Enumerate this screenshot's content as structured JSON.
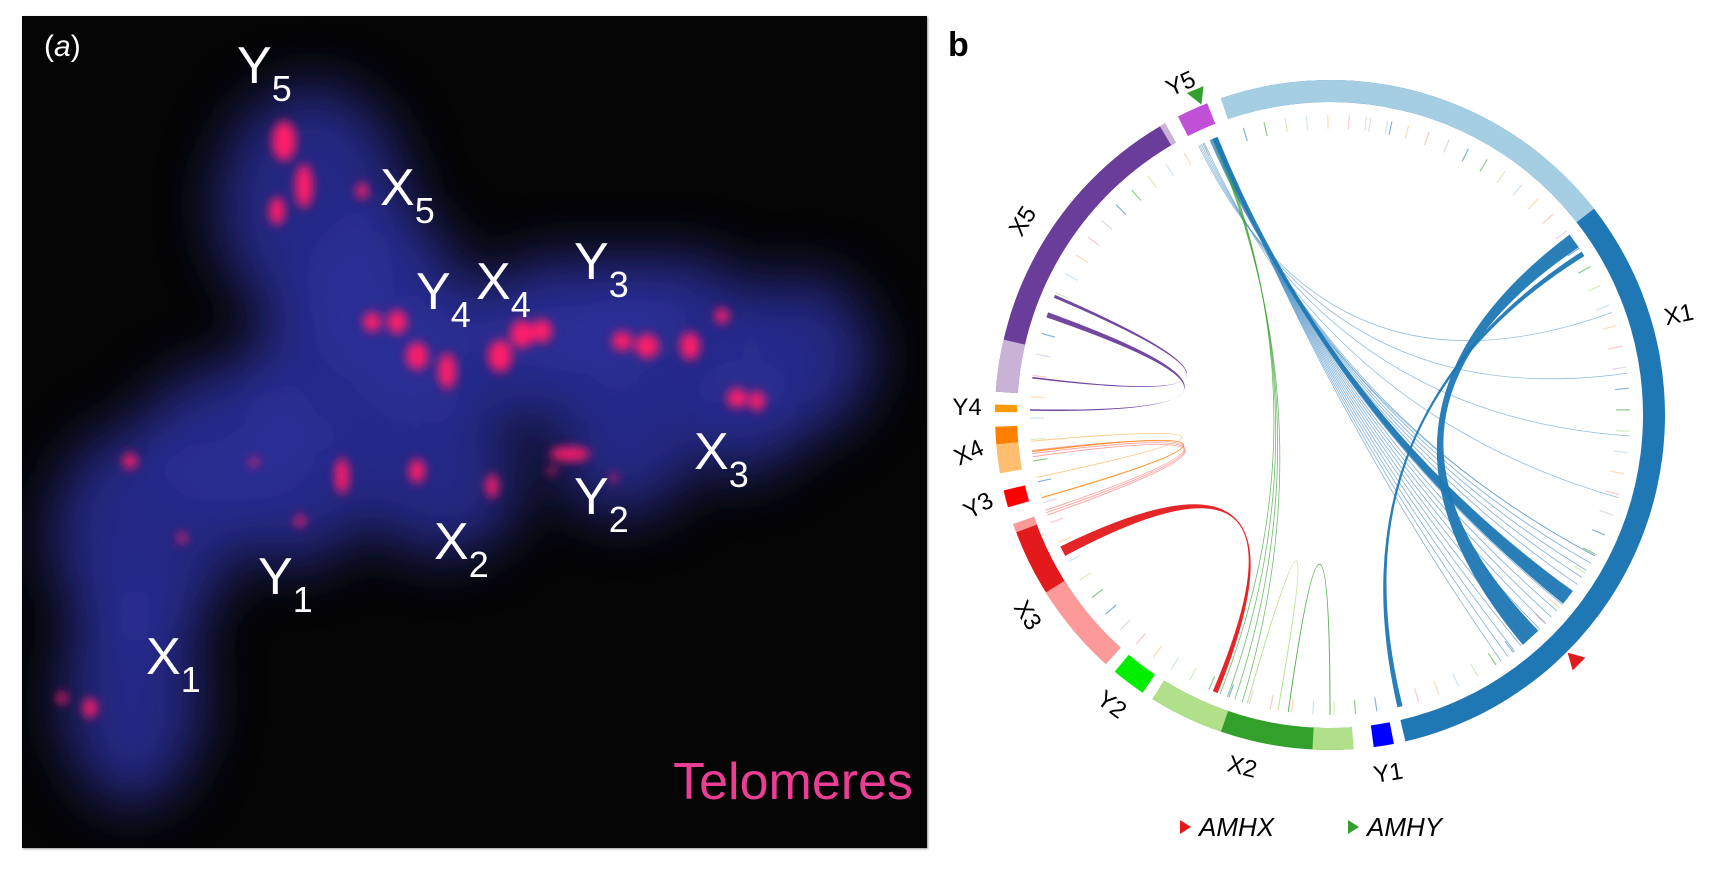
{
  "panel_a": {
    "tag_open": "(",
    "tag_letter": "a",
    "tag_close": ")",
    "caption": "Telomeres",
    "caption_color": "#ea3d94",
    "labels": [
      {
        "id": "Y5",
        "base": "Y",
        "sub": "5"
      },
      {
        "id": "X5",
        "base": "X",
        "sub": "5"
      },
      {
        "id": "Y4",
        "base": "Y",
        "sub": "4"
      },
      {
        "id": "X4",
        "base": "X",
        "sub": "4"
      },
      {
        "id": "Y3",
        "base": "Y",
        "sub": "3"
      },
      {
        "id": "X3",
        "base": "X",
        "sub": "3"
      },
      {
        "id": "Y2",
        "base": "Y",
        "sub": "2"
      },
      {
        "id": "X2",
        "base": "X",
        "sub": "2"
      },
      {
        "id": "Y1",
        "base": "Y",
        "sub": "1"
      },
      {
        "id": "X1",
        "base": "X",
        "sub": "1"
      }
    ]
  },
  "panel_b": {
    "tag": "b",
    "legend": [
      {
        "label": "AMHX",
        "color": "#e31a1c"
      },
      {
        "label": "AMHY",
        "color": "#33a02c"
      }
    ],
    "chromosomes": [
      {
        "name": "X1",
        "start_deg": -19,
        "end_deg": 167,
        "color": "#1f78b4",
        "light_color": "#a6cee3",
        "light_portion": [
          -19,
          52
        ]
      },
      {
        "name": "Y1",
        "start_deg": 169,
        "end_deg": 172.5,
        "color": "#0000ff"
      },
      {
        "name": "X2",
        "start_deg": 176,
        "end_deg": 212,
        "color": "#33a02c",
        "light_color": "#b2df8a",
        "light_portion_a": [
          176,
          183
        ],
        "light_portion_b": [
          199,
          212
        ]
      },
      {
        "name": "Y2",
        "start_deg": 214,
        "end_deg": 220,
        "color": "#00ee00"
      },
      {
        "name": "X3",
        "start_deg": 222,
        "end_deg": 251,
        "color": "#e31a1c",
        "light_color": "#fb9a99",
        "light_portion_a": [
          222,
          238
        ],
        "light_portion_b": [
          249.5,
          251
        ]
      },
      {
        "name": "Y3",
        "start_deg": 254,
        "end_deg": 257,
        "color": "#ff0000"
      },
      {
        "name": "X4",
        "start_deg": 260,
        "end_deg": 268,
        "color": "#ff7f00",
        "light_color": "#fdbf6f",
        "light_portion": [
          260,
          265
        ]
      },
      {
        "name": "Y4",
        "start_deg": 270.5,
        "end_deg": 271.8,
        "color": "#ff9900"
      },
      {
        "name": "X5",
        "start_deg": 274,
        "end_deg": 330.5,
        "color": "#6a3d9a",
        "light_color": "#cab2d6",
        "light_portion_a": [
          274,
          283
        ],
        "light_portion_b": [
          329.5,
          330.5
        ]
      },
      {
        "name": "Y5",
        "start_deg": 333,
        "end_deg": 338.5,
        "color": "#c050d8",
        "tick_deg": 333.8
      }
    ],
    "markers": [
      {
        "gene": "AMHX",
        "deg": 135,
        "color": "#e31a1c"
      },
      {
        "gene": "AMHY",
        "deg": 337.5,
        "color": "#33a02c"
      }
    ],
    "links": [
      {
        "from": [
          136,
          140
        ],
        "to": [
          53,
          56
        ],
        "color": "#1f78b4"
      },
      {
        "from": [
          126,
          129
        ],
        "to": [
          337,
          338
        ],
        "color": "#1f78b4"
      },
      {
        "from": [
          166,
          167
        ],
        "to": [
          57,
          58
        ],
        "color": "#1f78b4"
      },
      {
        "from": [
          242,
          244
        ],
        "to": [
          202,
          203
        ],
        "color": "#e31a1c"
      },
      {
        "from": [
          289,
          290
        ],
        "to": [
          270.8,
          271.1
        ],
        "color": "#6a3d9a"
      },
      {
        "from": [
          293,
          293.6
        ],
        "to": [
          277,
          277.3
        ],
        "color": "#6a3d9a"
      }
    ]
  }
}
